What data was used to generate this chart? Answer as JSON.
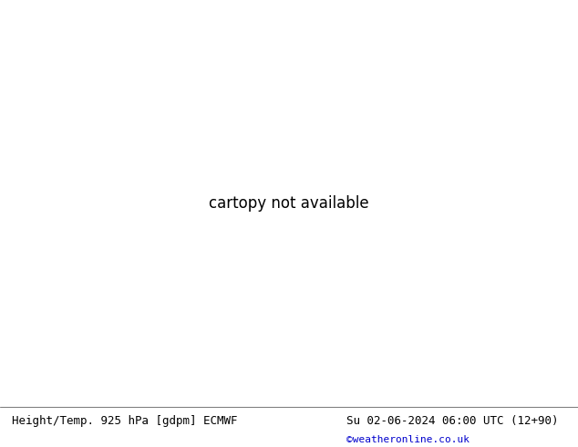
{
  "title_left": "Height/Temp. 925 hPa [gdpm] ECMWF",
  "title_right": "Su 02-06-2024 06:00 UTC (12+90)",
  "credit": "©weatheronline.co.uk",
  "title_fontsize": 9,
  "credit_fontsize": 8,
  "fig_width": 6.34,
  "fig_height": 4.9,
  "dpi": 100,
  "extent": [
    -30,
    60,
    30,
    75
  ],
  "land_color": "#c8e89c",
  "sea_color": "#d0d0d0",
  "lake_color": "#c8c8c8",
  "border_color": "#808080",
  "coastline_color": "#808080",
  "country_color": "#909090",
  "bg_color": "#d0d0d0",
  "green_light": "#d4f0a0",
  "text_color_black": "#000000",
  "text_color_blue": "#0000cc"
}
